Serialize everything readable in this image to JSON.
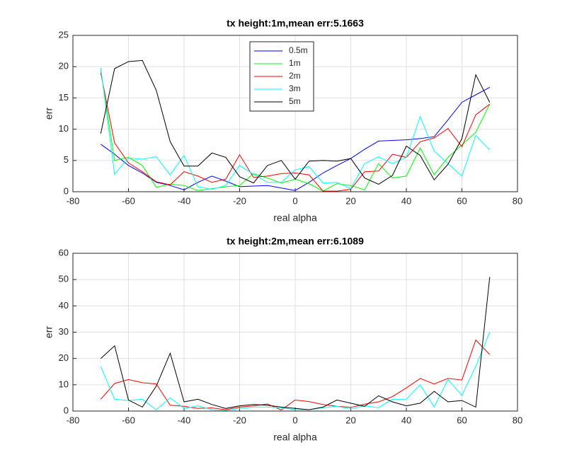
{
  "chart_data": [
    {
      "type": "line",
      "title": "tx height:1m,mean err:5.1663",
      "xlabel": "real alpha",
      "ylabel": "err",
      "x": [
        -70,
        -65,
        -60,
        -55,
        -50,
        -45,
        -40,
        -35,
        -30,
        -25,
        -20,
        -15,
        -10,
        -5,
        0,
        5,
        10,
        15,
        20,
        25,
        30,
        35,
        40,
        45,
        50,
        55,
        60,
        65,
        70
      ],
      "xlim": [
        -80,
        80
      ],
      "xticks": [
        -80,
        -60,
        -40,
        -20,
        0,
        20,
        40,
        60,
        80
      ],
      "ylim": [
        0,
        25
      ],
      "yticks": [
        0,
        5,
        10,
        15,
        20,
        25
      ],
      "grid": true,
      "legend": "north",
      "series": [
        {
          "name": "0.5m",
          "color": "#0000ff",
          "values": [
            7.6,
            6,
            4.2,
            3,
            1.5,
            1,
            0.3,
            1.5,
            2.5,
            1.7,
            0.8,
            0.9,
            1,
            0.6,
            0.2,
            1.5,
            3,
            4.2,
            5.3,
            6.8,
            8.1,
            8.2,
            8.3,
            8.5,
            8.8,
            11.5,
            14.3,
            15.5,
            16.7
          ]
        },
        {
          "name": "1m",
          "color": "#00ff00",
          "values": [
            19.5,
            5,
            5.5,
            4.2,
            0.7,
            1.2,
            1,
            0.2,
            0.5,
            0.8,
            1,
            2.9,
            2.2,
            1.4,
            2,
            1.3,
            0.1,
            1.3,
            1,
            0.3,
            4.5,
            2.2,
            2.5,
            7,
            2.7,
            5.5,
            7.5,
            9.5,
            14
          ]
        },
        {
          "name": "2m",
          "color": "#ff0000",
          "values": [
            19,
            7.8,
            4.6,
            3.2,
            1.6,
            1.1,
            3.2,
            2.5,
            1.5,
            2,
            5.9,
            2.3,
            2.5,
            2.9,
            3,
            2.7,
            0.1,
            0.1,
            0.4,
            3.2,
            3.3,
            6,
            5.5,
            8,
            8.6,
            10.1,
            7.2,
            12.3,
            14
          ]
        },
        {
          "name": "3m",
          "color": "#00ffff",
          "values": [
            19.8,
            2.8,
            5.4,
            5.2,
            5.6,
            2.7,
            5.8,
            0.8,
            0.4,
            1,
            4.2,
            2.8,
            1.5,
            1.5,
            3.5,
            4,
            1.4,
            1.5,
            0.5,
            4.5,
            5.6,
            4.5,
            5.5,
            12,
            6.5,
            4.5,
            2.5,
            9,
            6.7
          ]
        },
        {
          "name": "5m",
          "color": "#000000",
          "values": [
            9.3,
            19.7,
            20.8,
            21,
            16.2,
            8,
            4.1,
            4.1,
            6.2,
            5.5,
            2.4,
            1.4,
            4.2,
            5,
            2,
            4.9,
            5,
            4.9,
            5.3,
            2.2,
            1.2,
            2.6,
            7.3,
            5.8,
            1.9,
            4.4,
            8.5,
            18.7,
            14.3
          ]
        }
      ]
    },
    {
      "type": "line",
      "title": "tx height:2m,mean err:6.1089",
      "xlabel": "real alpha",
      "ylabel": "err",
      "x": [
        -70,
        -65,
        -60,
        -55,
        -50,
        -45,
        -40,
        -35,
        -30,
        -25,
        -20,
        -15,
        -10,
        -5,
        0,
        5,
        10,
        15,
        20,
        25,
        30,
        35,
        40,
        45,
        50,
        55,
        60,
        65,
        70
      ],
      "xlim": [
        -80,
        80
      ],
      "xticks": [
        -80,
        -60,
        -40,
        -20,
        0,
        20,
        40,
        60,
        80
      ],
      "ylim": [
        0,
        60
      ],
      "yticks": [
        0,
        10,
        20,
        30,
        40,
        50,
        60
      ],
      "grid": true,
      "series": [
        {
          "color": "#ff0000",
          "values": [
            4.5,
            10.5,
            12,
            10.8,
            10.3,
            2.2,
            1.8,
            1,
            1.2,
            0.5,
            1.5,
            2,
            2.7,
            0.4,
            4.2,
            3.6,
            2.5,
            1.8,
            1.4,
            2.6,
            3.5,
            5.5,
            8.8,
            12.4,
            10.3,
            12.4,
            11.8,
            27,
            21.5
          ]
        },
        {
          "color": "#00ffff",
          "values": [
            17,
            4.5,
            4,
            4.5,
            0.5,
            5,
            1,
            2,
            0.5,
            0.2,
            1,
            1.5,
            1.5,
            1.3,
            0.5,
            0.5,
            1.3,
            1.8,
            0.8,
            2,
            1.3,
            4.5,
            4.5,
            10,
            1.5,
            12,
            6,
            17,
            30
          ]
        },
        {
          "color": "#000000",
          "values": [
            20,
            24.8,
            4.2,
            1.5,
            9.5,
            22,
            3.5,
            4.5,
            2.5,
            1,
            2,
            2.5,
            2.2,
            1.5,
            1,
            0.5,
            1.5,
            4.2,
            3,
            1.8,
            5.8,
            3.5,
            2,
            3,
            7.5,
            3.5,
            4,
            1.5,
            51
          ]
        }
      ]
    }
  ]
}
